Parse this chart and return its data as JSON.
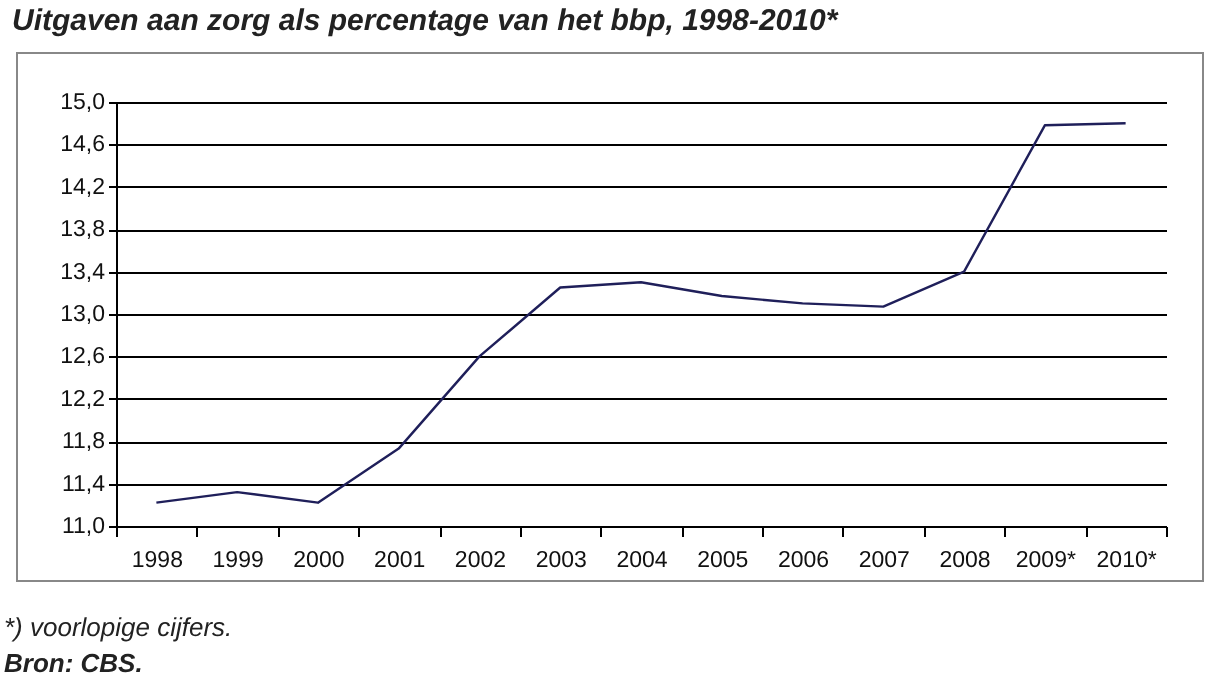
{
  "chart_data": {
    "type": "line",
    "title": "Uitgaven aan zorg als percentage van het bbp, 1998-2010*",
    "categories": [
      "1998",
      "1999",
      "2000",
      "2001",
      "2002",
      "2003",
      "2004",
      "2005",
      "2006",
      "2007",
      "2008",
      "2009*",
      "2010*"
    ],
    "series": [
      {
        "color": "#1f1f5a",
        "values": [
          11.22,
          11.32,
          11.22,
          11.73,
          12.6,
          13.25,
          13.3,
          13.17,
          13.1,
          13.07,
          13.4,
          14.78,
          14.8
        ]
      }
    ],
    "ylim": [
      11.0,
      15.0
    ],
    "yticks": [
      {
        "value": 11.0,
        "label": "11,0"
      },
      {
        "value": 11.4,
        "label": "11,4"
      },
      {
        "value": 11.8,
        "label": "11,8"
      },
      {
        "value": 12.2,
        "label": "12,2"
      },
      {
        "value": 12.6,
        "label": "12,6"
      },
      {
        "value": 13.0,
        "label": "13,0"
      },
      {
        "value": 13.4,
        "label": "13,4"
      },
      {
        "value": 13.8,
        "label": "13,8"
      },
      {
        "value": 14.2,
        "label": "14,2"
      },
      {
        "value": 14.6,
        "label": "14,6"
      },
      {
        "value": 15.0,
        "label": "15,0"
      }
    ],
    "grid": "y",
    "marker": "none",
    "line_style": "solid",
    "annotations": [
      "*) voorlopige cijfers.",
      "Bron: CBS."
    ]
  }
}
